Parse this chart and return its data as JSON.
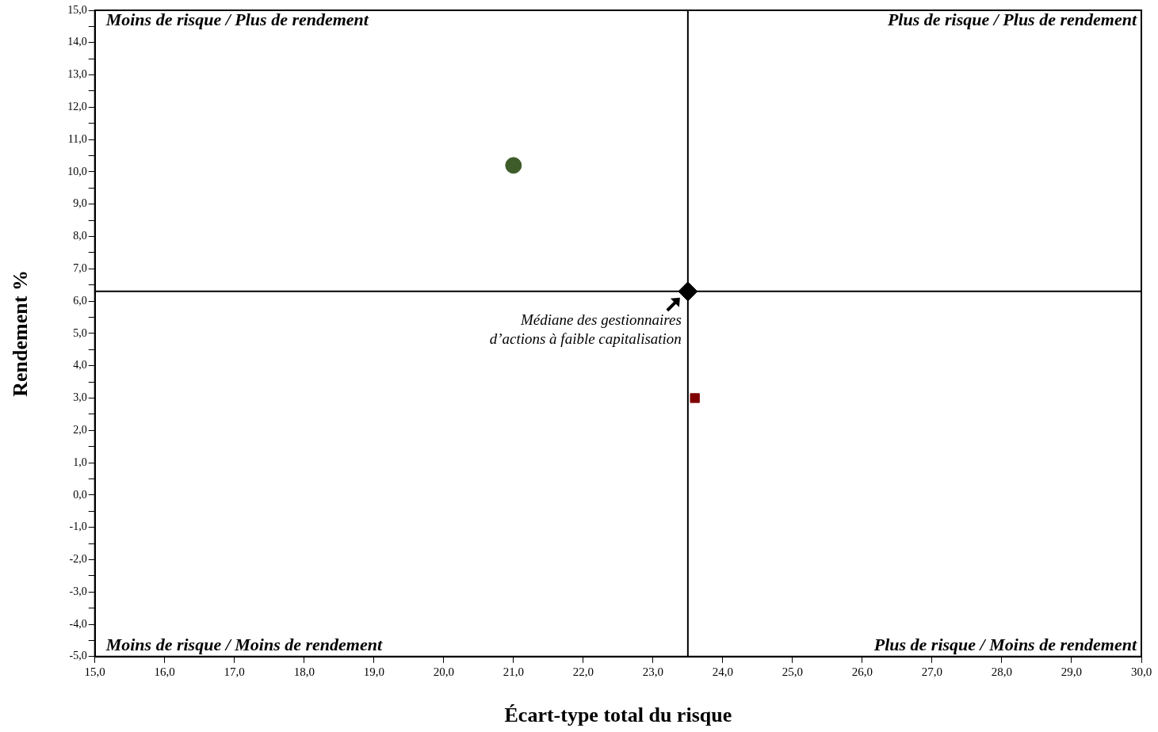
{
  "chart_data": {
    "type": "scatter",
    "xlabel": "Écart-type total du risque",
    "ylabel": "Rendement %",
    "xlim": [
      15,
      30
    ],
    "ylim": [
      -5,
      15
    ],
    "xticks": [
      {
        "value": 15,
        "label": "15,0"
      },
      {
        "value": 16,
        "label": "16,0"
      },
      {
        "value": 17,
        "label": "17,0"
      },
      {
        "value": 18,
        "label": "18,0"
      },
      {
        "value": 19,
        "label": "19,0"
      },
      {
        "value": 20,
        "label": "20,0"
      },
      {
        "value": 21,
        "label": "21,0"
      },
      {
        "value": 22,
        "label": "22,0"
      },
      {
        "value": 23,
        "label": "23,0"
      },
      {
        "value": 24,
        "label": "24,0"
      },
      {
        "value": 25,
        "label": "25,0"
      },
      {
        "value": 26,
        "label": "26,0"
      },
      {
        "value": 27,
        "label": "27,0"
      },
      {
        "value": 28,
        "label": "28,0"
      },
      {
        "value": 29,
        "label": "29,0"
      },
      {
        "value": 30,
        "label": "30,0"
      }
    ],
    "yticks": [
      {
        "value": -5,
        "label": "-5,0"
      },
      {
        "value": -4.5,
        "label": null
      },
      {
        "value": -4,
        "label": "-4,0"
      },
      {
        "value": -3.5,
        "label": null
      },
      {
        "value": -3,
        "label": "-3,0"
      },
      {
        "value": -2.5,
        "label": null
      },
      {
        "value": -2,
        "label": "-2,0"
      },
      {
        "value": -1.5,
        "label": null
      },
      {
        "value": -1,
        "label": "-1,0"
      },
      {
        "value": -0.5,
        "label": null
      },
      {
        "value": 0,
        "label": "0,0"
      },
      {
        "value": 0.5,
        "label": null
      },
      {
        "value": 1,
        "label": "1,0"
      },
      {
        "value": 1.5,
        "label": null
      },
      {
        "value": 2,
        "label": "2,0"
      },
      {
        "value": 2.5,
        "label": null
      },
      {
        "value": 3,
        "label": "3,0"
      },
      {
        "value": 3.5,
        "label": null
      },
      {
        "value": 4,
        "label": "4,0"
      },
      {
        "value": 4.5,
        "label": null
      },
      {
        "value": 5,
        "label": "5,0"
      },
      {
        "value": 5.5,
        "label": null
      },
      {
        "value": 6,
        "label": "6,0"
      },
      {
        "value": 6.5,
        "label": null
      },
      {
        "value": 7,
        "label": "7,0"
      },
      {
        "value": 7.5,
        "label": null
      },
      {
        "value": 8,
        "label": "8,0"
      },
      {
        "value": 8.5,
        "label": null
      },
      {
        "value": 9,
        "label": "9,0"
      },
      {
        "value": 9.5,
        "label": null
      },
      {
        "value": 10,
        "label": "10,0"
      },
      {
        "value": 10.5,
        "label": null
      },
      {
        "value": 11,
        "label": "11,0"
      },
      {
        "value": 11.5,
        "label": null
      },
      {
        "value": 12,
        "label": "12,0"
      },
      {
        "value": 12.5,
        "label": null
      },
      {
        "value": 13,
        "label": "13,0"
      },
      {
        "value": 13.5,
        "label": null
      },
      {
        "value": 14,
        "label": "14,0"
      },
      {
        "value": 14.5,
        "label": null
      },
      {
        "value": 15,
        "label": "15,0"
      }
    ],
    "grid": false,
    "legend": false,
    "series": [
      {
        "color": "#3d5c2a",
        "marker": "circle",
        "x": [
          21.0
        ],
        "values": [
          10.2
        ]
      },
      {
        "color": "#800000",
        "marker": "square",
        "x": [
          23.6
        ],
        "values": [
          3.0
        ]
      },
      {
        "color": "#000000",
        "marker": "diamond",
        "x": [
          23.5
        ],
        "values": [
          6.3
        ]
      }
    ],
    "ref_lines": [
      {
        "axis": "x",
        "value": 23.5,
        "color": "#000000"
      },
      {
        "axis": "y",
        "value": 6.3,
        "color": "#000000"
      }
    ],
    "annotations": [
      "Moins de risque / Plus de rendement",
      "Plus de risque / Plus de rendement",
      "Moins de risque / Moins de rendement",
      "Plus de risque / Moins de rendement",
      {
        "text": "Médiane des gestionnaires d’actions à faible capitalisation",
        "x": 23.5,
        "y": 6.3
      }
    ]
  }
}
